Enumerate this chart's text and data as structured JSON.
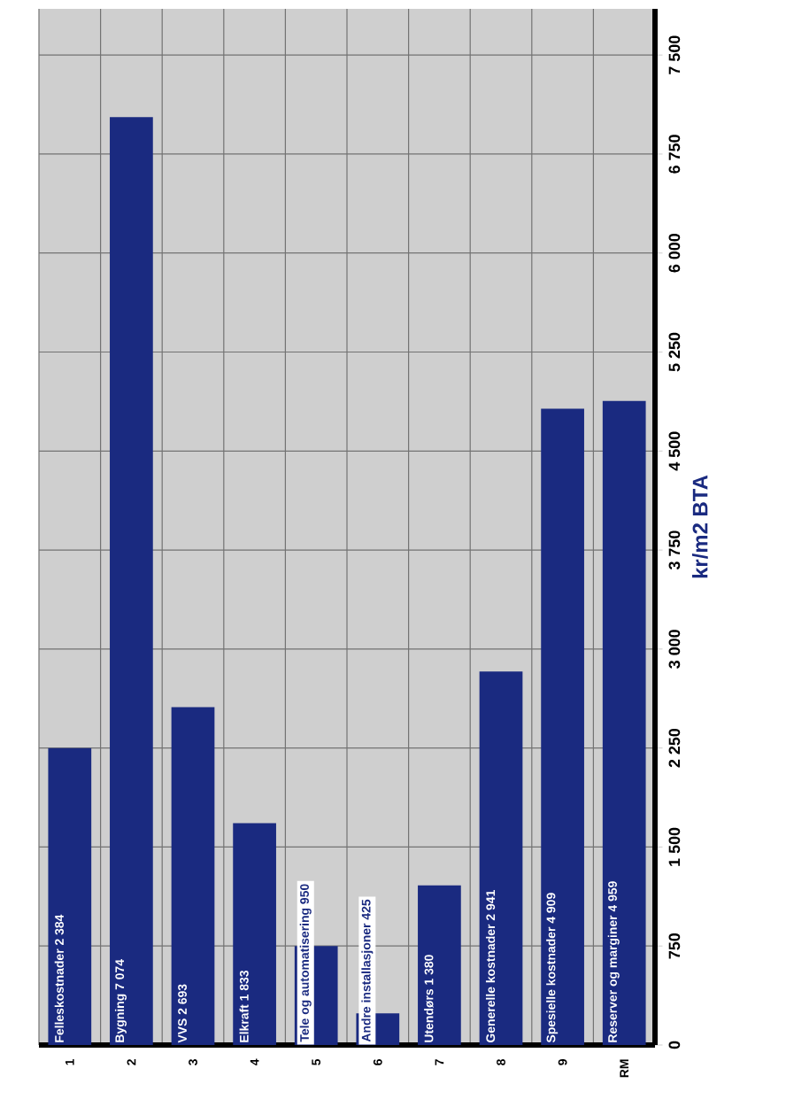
{
  "chart_data": {
    "type": "bar",
    "categories": [
      "1",
      "2",
      "3",
      "4",
      "5",
      "6",
      "7",
      "8",
      "9",
      "RM"
    ],
    "values": [
      2250,
      7030,
      2560,
      1680,
      750,
      240,
      1210,
      2830,
      4820,
      4880
    ],
    "value_labels": [
      "Felleskostnader 2 384",
      "Bygning 7 074",
      "VVS 2 693",
      "Elkraft 1 833",
      "Tele og automatisering 950",
      "Andre installasjoner 425",
      "Utendørs 1 380",
      "Generelle kostnader 2 941",
      "Spesielle kostnader 4 909",
      "Reserver og marginer 4 959"
    ],
    "color": "#1a2a80",
    "ylabel": "kr/m2 BTA",
    "ylim": [
      0,
      7850
    ],
    "yticks": [
      0,
      750,
      {
        "value": 1500,
        "label": "1 500"
      },
      {
        "value": 2250,
        "label": "2 250"
      },
      {
        "value": 3000,
        "label": "3 000"
      },
      {
        "value": 3750,
        "label": "3 750"
      },
      {
        "value": 4500,
        "label": "4 500"
      },
      {
        "value": 5250,
        "label": "5 250"
      },
      {
        "value": 6000,
        "label": "6 000"
      },
      {
        "value": 6750,
        "label": "6 750"
      },
      {
        "value": 7500,
        "label": "7 500"
      }
    ],
    "grid": true
  }
}
